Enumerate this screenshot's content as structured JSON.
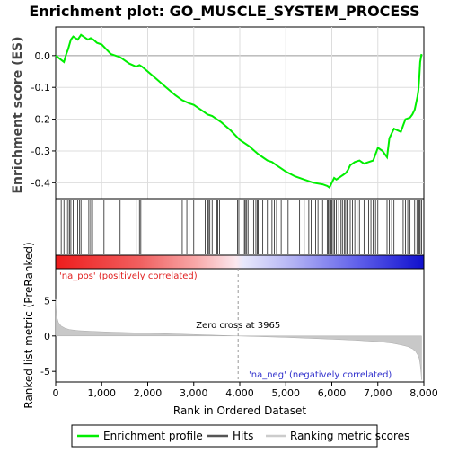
{
  "chart_data": {
    "type": "line",
    "title": "Enrichment plot: GO_MUSCLE_SYSTEM_PROCESS",
    "es_panel": {
      "ylabel": "Enrichment score (ES)",
      "ylim": [
        -0.45,
        0.09
      ],
      "yticks": [
        "0.0",
        "-0.1",
        "-0.2",
        "-0.3",
        "-0.4"
      ],
      "ytick_values": [
        0.0,
        -0.1,
        -0.2,
        -0.3,
        -0.4
      ],
      "grid": true,
      "series": [
        {
          "name": "Enrichment profile",
          "color": "#00ee00",
          "x": [
            0,
            180,
            230,
            270,
            330,
            380,
            480,
            550,
            600,
            700,
            760,
            820,
            900,
            1000,
            1100,
            1200,
            1400,
            1600,
            1750,
            1820,
            1880,
            2000,
            2200,
            2400,
            2600,
            2750,
            2900,
            3000,
            3100,
            3200,
            3300,
            3400,
            3500,
            3600,
            3800,
            4000,
            4200,
            4400,
            4500,
            4600,
            4700,
            4800,
            5000,
            5200,
            5400,
            5600,
            5800,
            5900,
            5950,
            6000,
            6050,
            6100,
            6150,
            6200,
            6250,
            6300,
            6350,
            6400,
            6450,
            6500,
            6600,
            6700,
            6800,
            6900,
            6950,
            7000,
            7100,
            7200,
            7250,
            7300,
            7350,
            7500,
            7550,
            7600,
            7700,
            7750,
            7800,
            7830,
            7860,
            7880,
            7900,
            7920,
            7950
          ],
          "y": [
            0.0,
            -0.02,
            0.005,
            0.02,
            0.05,
            0.06,
            0.05,
            0.065,
            0.06,
            0.05,
            0.055,
            0.05,
            0.04,
            0.035,
            0.02,
            0.005,
            -0.005,
            -0.025,
            -0.035,
            -0.03,
            -0.035,
            -0.05,
            -0.075,
            -0.1,
            -0.125,
            -0.14,
            -0.15,
            -0.155,
            -0.165,
            -0.175,
            -0.185,
            -0.19,
            -0.2,
            -0.21,
            -0.235,
            -0.265,
            -0.285,
            -0.31,
            -0.32,
            -0.33,
            -0.335,
            -0.345,
            -0.365,
            -0.38,
            -0.39,
            -0.4,
            -0.405,
            -0.41,
            -0.415,
            -0.4,
            -0.385,
            -0.39,
            -0.385,
            -0.38,
            -0.375,
            -0.37,
            -0.36,
            -0.345,
            -0.34,
            -0.335,
            -0.33,
            -0.34,
            -0.335,
            -0.33,
            -0.31,
            -0.29,
            -0.3,
            -0.32,
            -0.26,
            -0.245,
            -0.23,
            -0.24,
            -0.22,
            -0.2,
            -0.195,
            -0.185,
            -0.17,
            -0.15,
            -0.13,
            -0.11,
            -0.07,
            -0.02,
            0.005
          ]
        }
      ]
    },
    "hits": [
      120,
      180,
      230,
      270,
      300,
      330,
      380,
      480,
      520,
      550,
      720,
      760,
      800,
      1050,
      1400,
      1750,
      1820,
      1850,
      2750,
      2850,
      2900,
      3000,
      3250,
      3300,
      3320,
      3350,
      3400,
      3500,
      3520,
      3560,
      3950,
      3980,
      4050,
      4100,
      4120,
      4150,
      4180,
      4300,
      4350,
      4380,
      4400,
      4500,
      4600,
      4700,
      4750,
      4800,
      4900,
      5050,
      5200,
      5300,
      5400,
      5500,
      5550,
      5650,
      5700,
      5800,
      5900,
      5920,
      5950,
      5980,
      6000,
      6030,
      6060,
      6100,
      6150,
      6200,
      6230,
      6270,
      6300,
      6330,
      6400,
      6450,
      6500,
      6550,
      6600,
      6700,
      6800,
      6850,
      6900,
      6950,
      7000,
      7200,
      7250,
      7300,
      7350,
      7550,
      7600,
      7650,
      7700,
      7800,
      7850,
      7880,
      7900,
      7920,
      7950
    ],
    "ranked_panel": {
      "ylabel": "Ranked list metric (PreRanked)",
      "ylim": [
        -6.5,
        9.5
      ],
      "yticks": [
        "5",
        "0",
        "-5"
      ],
      "ytick_values": [
        5,
        0,
        -5
      ],
      "zero_cross_label": "Zero cross at 3965",
      "zero_cross_x": 3965,
      "pos_label": "'na_pos' (positively correlated)",
      "neg_label": "'na_neg' (negatively correlated)",
      "profile": {
        "x": [
          0,
          20,
          60,
          120,
          200,
          300,
          500,
          800,
          1200,
          2000,
          3000,
          3965,
          5000,
          6000,
          6500,
          7000,
          7300,
          7500,
          7650,
          7750,
          7820,
          7870,
          7900,
          7920,
          7940,
          7950
        ],
        "y": [
          5.2,
          2.8,
          1.9,
          1.4,
          1.1,
          0.9,
          0.75,
          0.65,
          0.55,
          0.4,
          0.2,
          0.0,
          -0.2,
          -0.45,
          -0.6,
          -0.8,
          -1.0,
          -1.25,
          -1.5,
          -1.8,
          -2.2,
          -2.7,
          -3.2,
          -4.0,
          -5.2,
          -6.2
        ]
      }
    },
    "xaxis": {
      "label": "Rank in Ordered Dataset",
      "xlim": [
        0,
        8000
      ],
      "ticks": [
        "0",
        "1,000",
        "2,000",
        "3,000",
        "4,000",
        "5,000",
        "6,000",
        "7,000",
        "8,000"
      ],
      "tick_values": [
        0,
        1000,
        2000,
        3000,
        4000,
        5000,
        6000,
        7000,
        8000
      ]
    },
    "legend": {
      "placement": "bottom",
      "entries": [
        {
          "label": "Enrichment profile",
          "color": "#00ee00"
        },
        {
          "label": "Hits",
          "color": "#555555"
        },
        {
          "label": "Ranking metric scores",
          "color": "#cccccc"
        }
      ]
    }
  }
}
